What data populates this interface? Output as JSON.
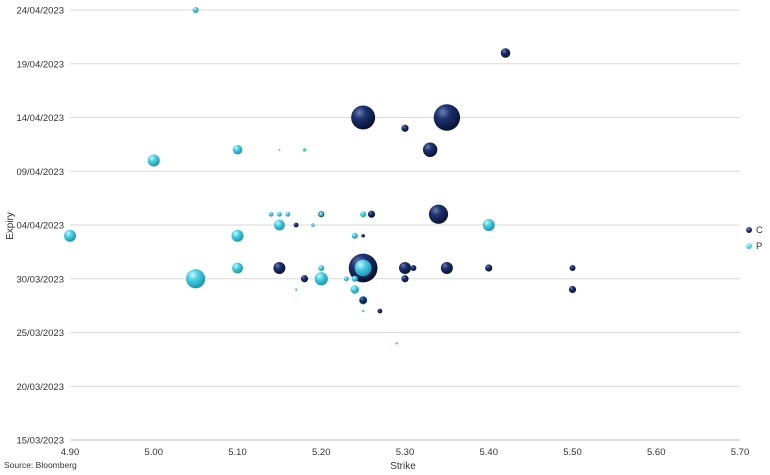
{
  "chart_data": {
    "type": "scatter",
    "subtype": "bubble",
    "xlabel": "Strike",
    "ylabel": "Expiry",
    "xlim": [
      4.9,
      5.7
    ],
    "ylim": [
      "15/03/2023",
      "24/04/2023"
    ],
    "x_ticks": [
      "4.90",
      "5.00",
      "5.10",
      "5.20",
      "5.30",
      "5.40",
      "5.50",
      "5.60",
      "5.70"
    ],
    "y_ticks": [
      "15/03/2023",
      "20/03/2023",
      "25/03/2023",
      "30/03/2023",
      "04/04/2023",
      "09/04/2023",
      "14/04/2023",
      "19/04/2023",
      "24/04/2023"
    ],
    "grid": "horizontal",
    "legend_position": "right",
    "series": [
      {
        "name": "C",
        "color": "#0d1f4f",
        "points": [
          {
            "x": 5.42,
            "y": "20/04/2023",
            "size": 4
          },
          {
            "x": 5.25,
            "y": "14/04/2023",
            "size": 10
          },
          {
            "x": 5.35,
            "y": "14/04/2023",
            "size": 11
          },
          {
            "x": 5.3,
            "y": "13/04/2023",
            "size": 3
          },
          {
            "x": 5.33,
            "y": "11/04/2023",
            "size": 6
          },
          {
            "x": 5.34,
            "y": "05/04/2023",
            "size": 8
          },
          {
            "x": 5.26,
            "y": "05/04/2023",
            "size": 3
          },
          {
            "x": 5.2,
            "y": "05/04/2023",
            "size": 2.5
          },
          {
            "x": 5.17,
            "y": "04/04/2023",
            "size": 2
          },
          {
            "x": 5.25,
            "y": "03/04/2023",
            "size": 1.5
          },
          {
            "x": 5.15,
            "y": "31/03/2023",
            "size": 5
          },
          {
            "x": 5.25,
            "y": "31/03/2023",
            "size": 12
          },
          {
            "x": 5.3,
            "y": "31/03/2023",
            "size": 5
          },
          {
            "x": 5.31,
            "y": "31/03/2023",
            "size": 2.5
          },
          {
            "x": 5.35,
            "y": "31/03/2023",
            "size": 5
          },
          {
            "x": 5.4,
            "y": "31/03/2023",
            "size": 3
          },
          {
            "x": 5.5,
            "y": "31/03/2023",
            "size": 2.5
          },
          {
            "x": 5.18,
            "y": "30/03/2023",
            "size": 3
          },
          {
            "x": 5.3,
            "y": "30/03/2023",
            "size": 3
          },
          {
            "x": 5.5,
            "y": "29/03/2023",
            "size": 3
          },
          {
            "x": 5.25,
            "y": "28/03/2023",
            "size": 3
          },
          {
            "x": 5.27,
            "y": "27/03/2023",
            "size": 2
          }
        ]
      },
      {
        "name": "P",
        "color": "#3ccbe0",
        "points": [
          {
            "x": 5.05,
            "y": "24/04/2023",
            "size": 2.5
          },
          {
            "x": 5.1,
            "y": "11/04/2023",
            "size": 4
          },
          {
            "x": 5.15,
            "y": "11/04/2023",
            "size": 0.8
          },
          {
            "x": 5.18,
            "y": "11/04/2023",
            "size": 1.5
          },
          {
            "x": 5.0,
            "y": "10/04/2023",
            "size": 5
          },
          {
            "x": 5.14,
            "y": "05/04/2023",
            "size": 2
          },
          {
            "x": 5.15,
            "y": "05/04/2023",
            "size": 2
          },
          {
            "x": 5.16,
            "y": "05/04/2023",
            "size": 2
          },
          {
            "x": 5.2,
            "y": "05/04/2023",
            "size": 2
          },
          {
            "x": 5.25,
            "y": "05/04/2023",
            "size": 2.5
          },
          {
            "x": 5.15,
            "y": "04/04/2023",
            "size": 4.5
          },
          {
            "x": 5.19,
            "y": "04/04/2023",
            "size": 1.5
          },
          {
            "x": 5.4,
            "y": "04/04/2023",
            "size": 5
          },
          {
            "x": 4.9,
            "y": "03/04/2023",
            "size": 5
          },
          {
            "x": 5.1,
            "y": "03/04/2023",
            "size": 5
          },
          {
            "x": 5.24,
            "y": "03/04/2023",
            "size": 2.5
          },
          {
            "x": 5.1,
            "y": "31/03/2023",
            "size": 4.5
          },
          {
            "x": 5.2,
            "y": "31/03/2023",
            "size": 2.5
          },
          {
            "x": 5.25,
            "y": "31/03/2023",
            "size": 7
          },
          {
            "x": 5.05,
            "y": "30/03/2023",
            "size": 8
          },
          {
            "x": 5.2,
            "y": "30/03/2023",
            "size": 5.5
          },
          {
            "x": 5.23,
            "y": "30/03/2023",
            "size": 2
          },
          {
            "x": 5.24,
            "y": "30/03/2023",
            "size": 2.5
          },
          {
            "x": 5.17,
            "y": "29/03/2023",
            "size": 1
          },
          {
            "x": 5.24,
            "y": "29/03/2023",
            "size": 3.5
          },
          {
            "x": 5.25,
            "y": "28/03/2023",
            "size": 3.5
          },
          {
            "x": 5.25,
            "y": "27/03/2023",
            "size": 1
          },
          {
            "x": 5.29,
            "y": "24/03/2023",
            "size": 1
          }
        ]
      }
    ],
    "source": "Source: Bloomberg"
  }
}
